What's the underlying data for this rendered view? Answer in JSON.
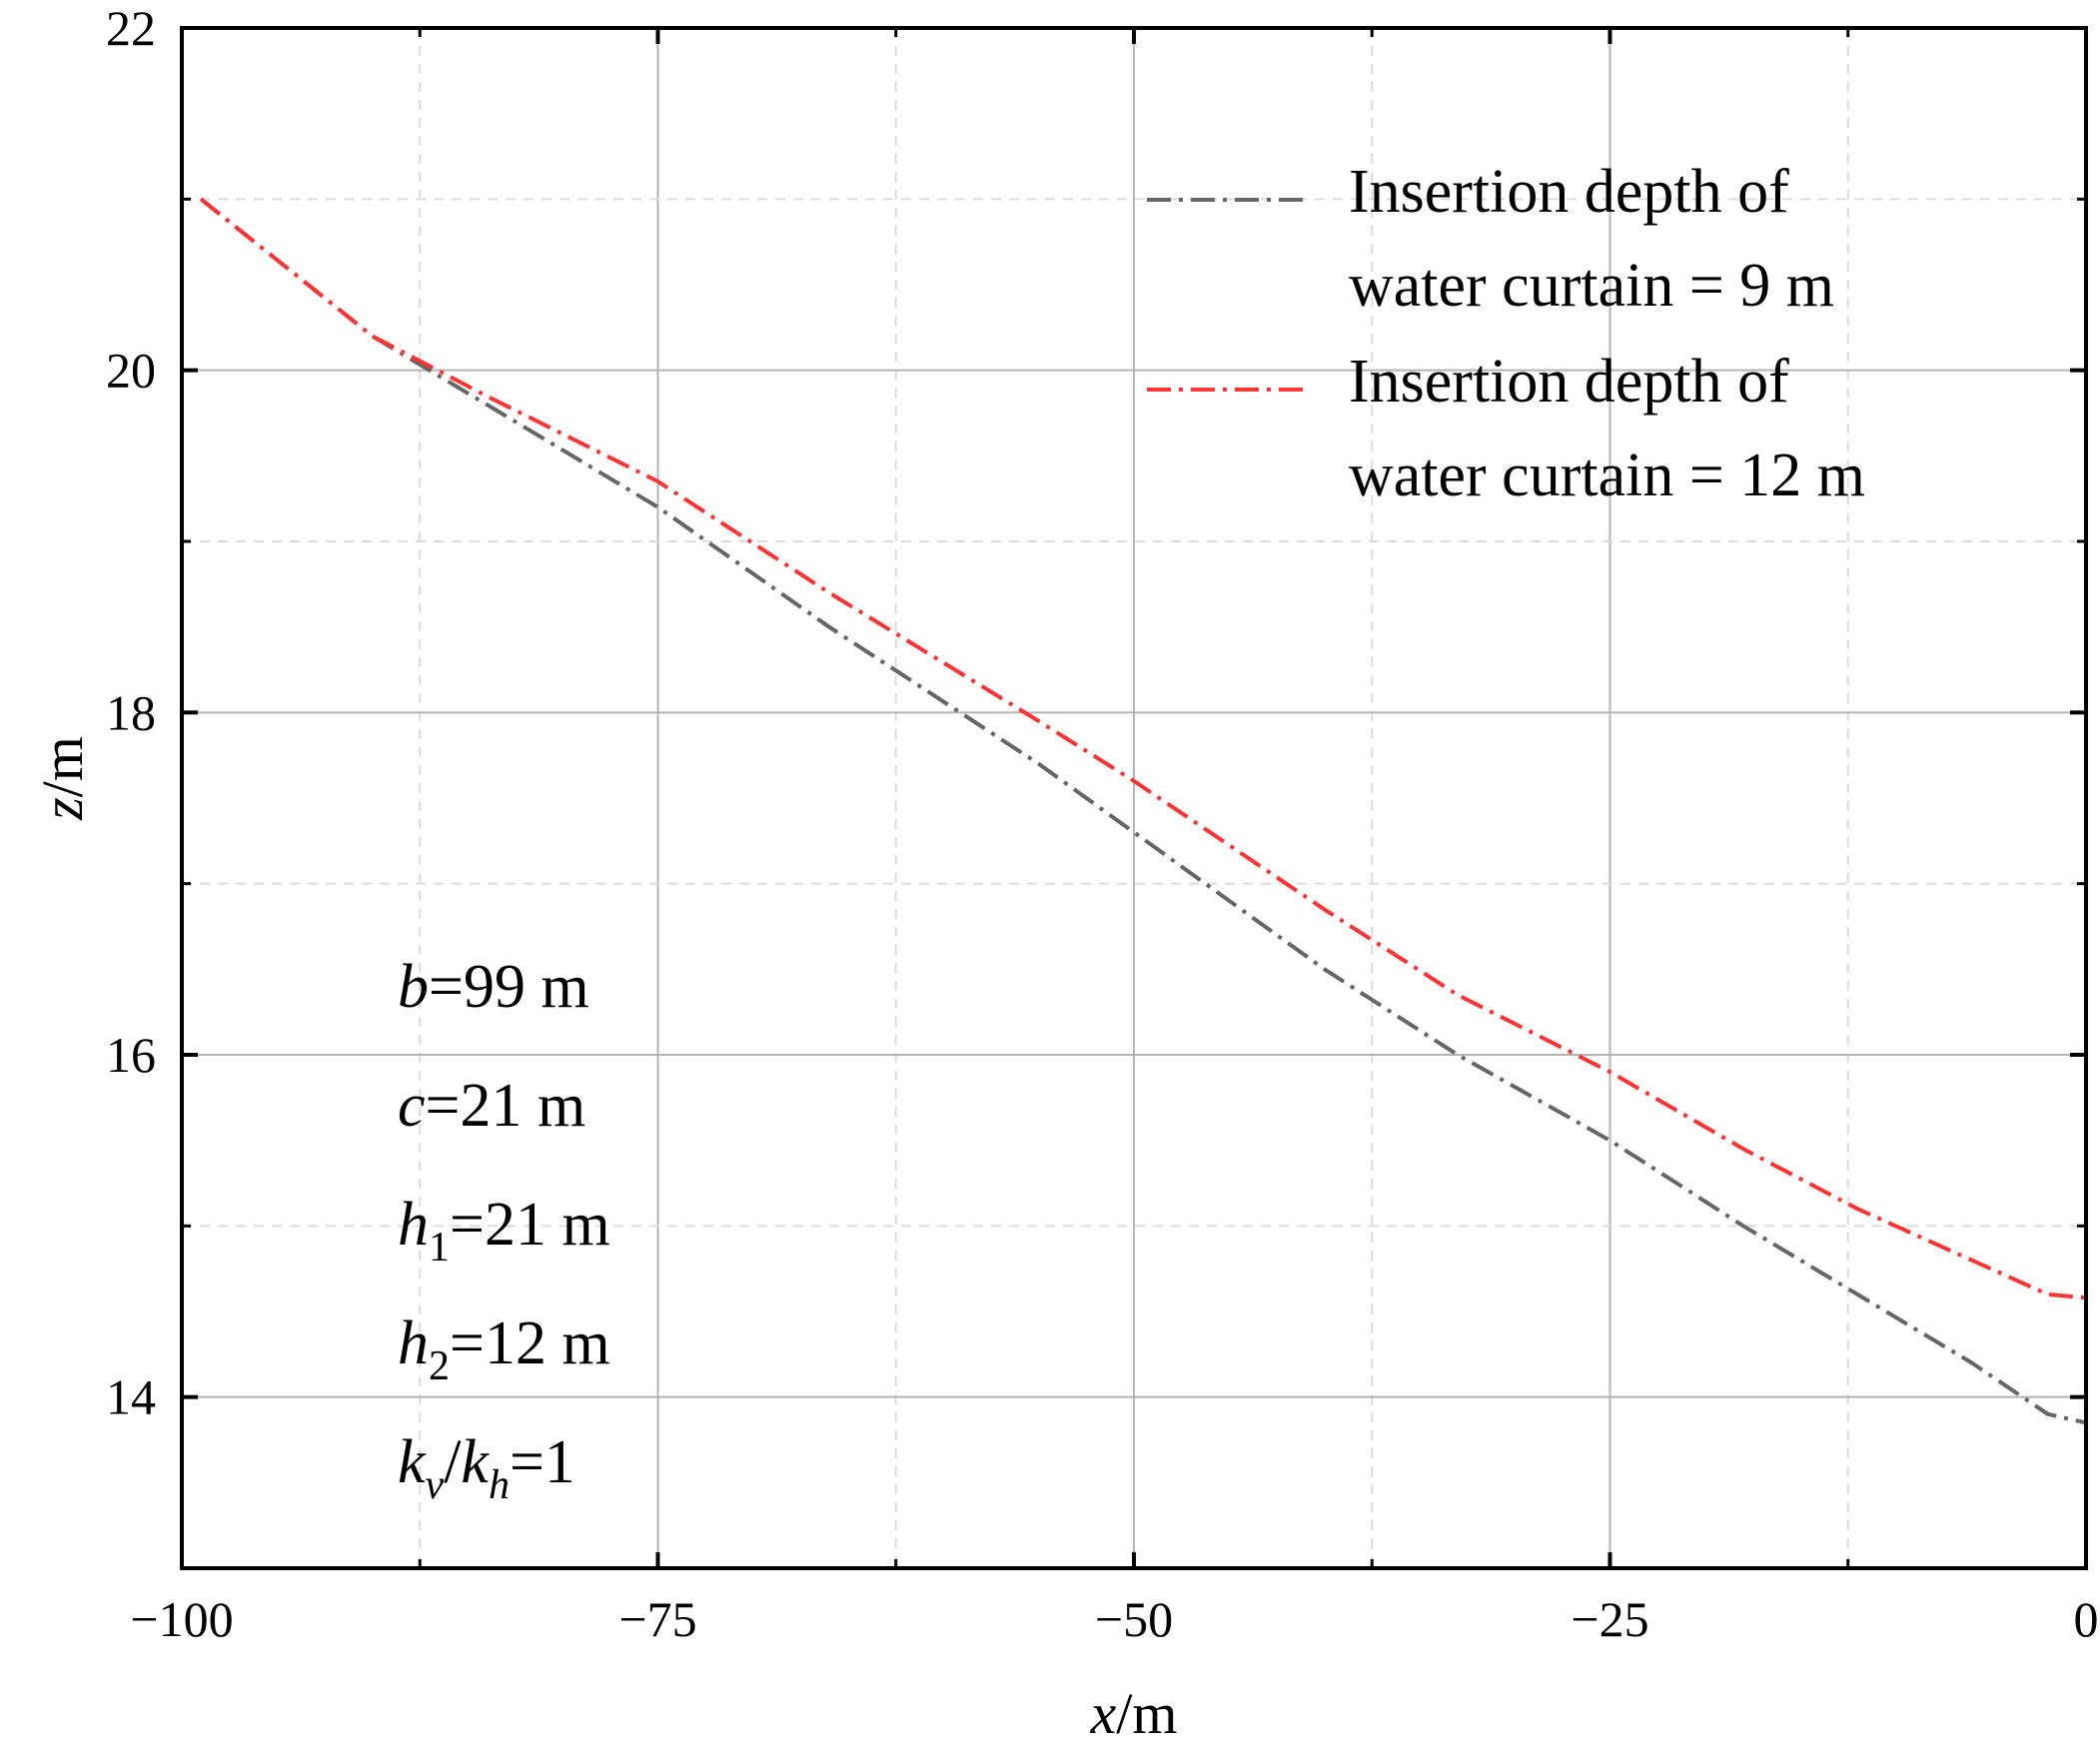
{
  "chart_data": {
    "type": "line",
    "title": "",
    "xlabel": {
      "var": "x",
      "unit": "/m"
    },
    "ylabel": {
      "var": "z",
      "unit": "/m"
    },
    "xlim": [
      -100,
      0
    ],
    "ylim": [
      13,
      22
    ],
    "xticks": [
      -100,
      -75,
      -50,
      -25,
      0
    ],
    "xtick_labels": [
      "−100",
      "−75",
      "−50",
      "−25",
      "0"
    ],
    "yticks": [
      14,
      16,
      18,
      20,
      22
    ],
    "ytick_labels": [
      "14",
      "16",
      "18",
      "20",
      "22"
    ],
    "grid": true,
    "legend_position": "top-right",
    "series": [
      {
        "name": "Insertion depth of water curtain = 9 m",
        "legend_lines": [
          "Insertion depth of",
          "water curtain = 9 m"
        ],
        "color": "#666666",
        "style": "dash-dot",
        "x": [
          -99,
          -90,
          -84,
          -75,
          -66,
          -55,
          -50,
          -40,
          -33,
          -25,
          -18,
          -12,
          -6,
          -2,
          0
        ],
        "y": [
          21.0,
          20.2,
          19.8,
          19.2,
          18.5,
          17.7,
          17.3,
          16.5,
          16.0,
          15.5,
          15.0,
          14.6,
          14.2,
          13.9,
          13.85
        ]
      },
      {
        "name": "Insertion depth of water curtain = 12 m",
        "legend_lines": [
          "Insertion depth of",
          "water curtain = 12 m"
        ],
        "color": "#ff3333",
        "style": "dash-dot",
        "x": [
          -99,
          -90,
          -84,
          -75,
          -66,
          -55,
          -50,
          -40,
          -33,
          -25,
          -18,
          -12,
          -6,
          -2,
          0
        ],
        "y": [
          21.0,
          20.2,
          19.85,
          19.35,
          18.7,
          17.95,
          17.6,
          16.85,
          16.35,
          15.9,
          15.45,
          15.1,
          14.8,
          14.6,
          14.58
        ]
      }
    ],
    "annotations": [
      {
        "var": "b",
        "sub": "",
        "rest": "=99 m"
      },
      {
        "var": "c",
        "sub": "",
        "rest": "=21 m"
      },
      {
        "var": "h",
        "sub": "1",
        "rest": "=21 m"
      },
      {
        "var": "h",
        "sub": "2",
        "rest": "=12 m"
      },
      {
        "var": "k",
        "sub": "v",
        "var2": "k",
        "sub2": "h",
        "rest": "=1"
      }
    ]
  }
}
